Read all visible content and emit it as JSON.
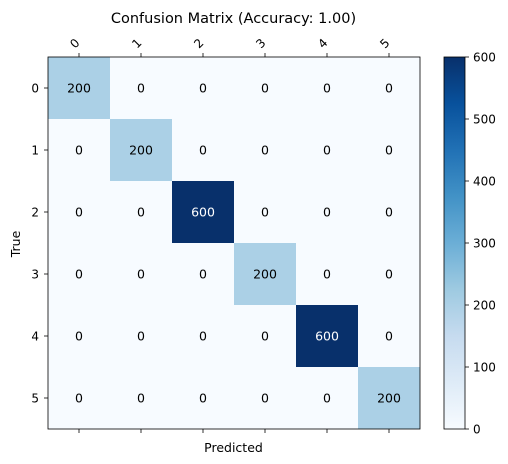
{
  "chart_data": {
    "type": "heatmap",
    "title": "Confusion Matrix (Accuracy: 1.00)",
    "xlabel": "Predicted",
    "ylabel": "True",
    "x_categories": [
      "0",
      "1",
      "2",
      "3",
      "4",
      "5"
    ],
    "y_categories": [
      "0",
      "1",
      "2",
      "3",
      "4",
      "5"
    ],
    "values": [
      [
        200,
        0,
        0,
        0,
        0,
        0
      ],
      [
        0,
        200,
        0,
        0,
        0,
        0
      ],
      [
        0,
        0,
        600,
        0,
        0,
        0
      ],
      [
        0,
        0,
        0,
        200,
        0,
        0
      ],
      [
        0,
        0,
        0,
        0,
        600,
        0
      ],
      [
        0,
        0,
        0,
        0,
        0,
        200
      ]
    ],
    "color_range": [
      0,
      600
    ],
    "colormap": "Blues",
    "colors": {
      "0": "#f7fbff",
      "200": "#abd0e6",
      "600": "#08306b"
    },
    "colorbar": {
      "ticks": [
        "0",
        "100",
        "200",
        "300",
        "400",
        "500",
        "600"
      ],
      "stops": [
        "#f7fbff",
        "#deebf7",
        "#c6dbef",
        "#9ecae1",
        "#6baed6",
        "#4292c6",
        "#2171b5",
        "#08519c",
        "#08306b"
      ]
    },
    "x_tick_position": "top",
    "x_tick_rotation": -45,
    "grid": false,
    "legend": "none"
  }
}
